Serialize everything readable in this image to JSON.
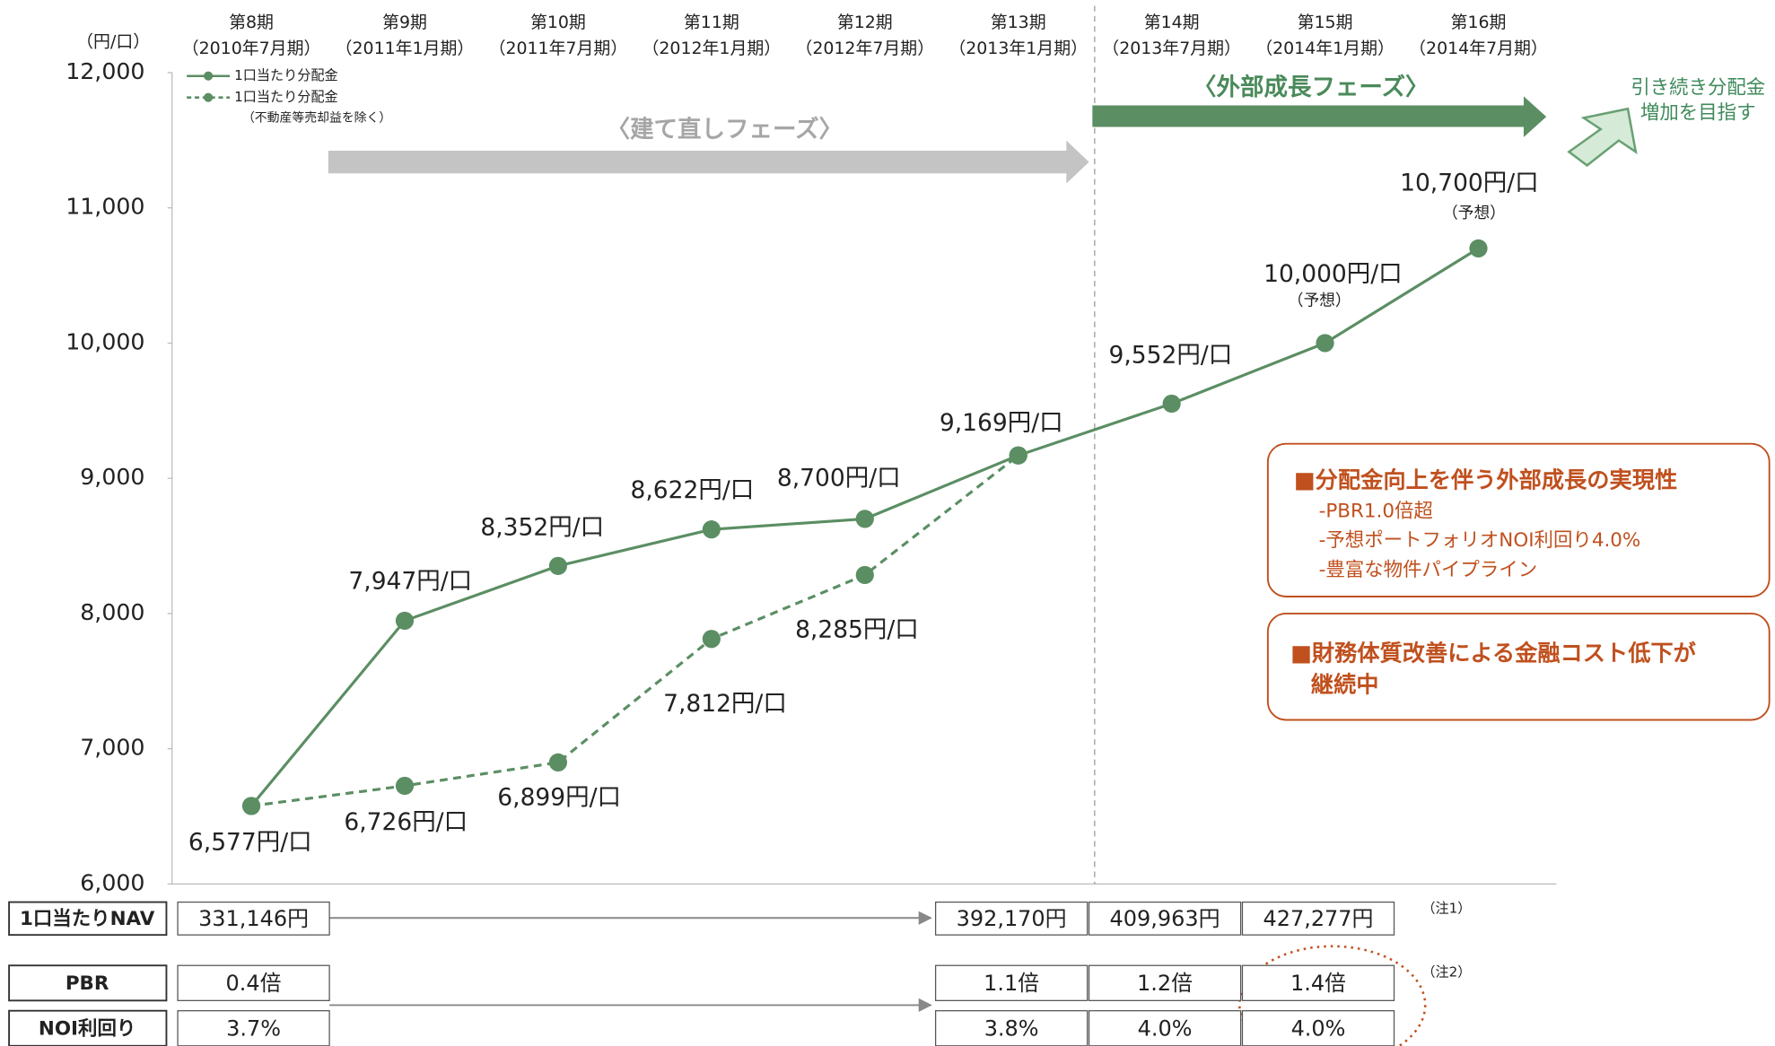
{
  "chart_data": {
    "type": "line",
    "y_unit_label": "（円/口）",
    "categories": [
      "第8期",
      "第9期",
      "第10期",
      "第11期",
      "第12期",
      "第13期",
      "第14期",
      "第15期",
      "第16期"
    ],
    "category_periods": [
      "（2010年7月期）",
      "（2011年1月期）",
      "（2011年7月期）",
      "（2012年1月期）",
      "（2012年7月期）",
      "（2013年1月期）",
      "（2013年7月期）",
      "（2014年1月期）",
      "（2014年7月期）"
    ],
    "series": [
      {
        "name": "1口当たり分配金",
        "color": "#5b8e63",
        "line_style": "solid",
        "values": [
          6577,
          7947,
          8352,
          8622,
          8700,
          9169,
          9552,
          10000,
          10700
        ],
        "value_labels": [
          "6,577円/口",
          "7,947円/口",
          "8,352円/口",
          "8,622円/口",
          "8,700円/口",
          "9,169円/口",
          "9,552円/口",
          "10,000円/口",
          "10,700円/口"
        ],
        "value_notes": [
          null,
          null,
          null,
          null,
          null,
          null,
          null,
          "（予想）",
          "（予想）"
        ]
      },
      {
        "name": "1口当たり分配金",
        "note": "（不動産等売却益を除く）",
        "color": "#5b8e63",
        "line_style": "dashed",
        "values": [
          6577,
          6726,
          6899,
          7812,
          8285,
          9169,
          null,
          null,
          null
        ],
        "value_labels": [
          null,
          "6,726円/口",
          "6,899円/口",
          "7,812円/口",
          "8,285円/口",
          null,
          null,
          null,
          null
        ]
      }
    ],
    "ylim": [
      6000,
      12000
    ],
    "yticks": [
      {
        "value": 6000,
        "label": "6,000"
      },
      {
        "value": 7000,
        "label": "7,000"
      },
      {
        "value": 8000,
        "label": "8,000"
      },
      {
        "value": 9000,
        "label": "9,000"
      },
      {
        "value": 10000,
        "label": "10,000"
      },
      {
        "value": 11000,
        "label": "11,000"
      },
      {
        "value": 12000,
        "label": "12,000"
      }
    ],
    "grid": false,
    "annotations": {
      "rebuild_phase": "〈建て直しフェーズ〉",
      "growth_phase": "〈外部成長フェーズ〉",
      "outlook": [
        "引き続き分配金",
        "増加を目指す"
      ],
      "box1": {
        "title": "■分配金向上を伴う外部成長の実現性",
        "items": [
          "-PBR1.0倍超",
          "-予想ポートフォリオNOI利回り4.0%",
          "-豊富な物件パイプライン"
        ]
      },
      "box2": {
        "lines": [
          "■財務体質改善による金融コスト低下が",
          "継続中"
        ]
      }
    }
  },
  "table": {
    "rows": [
      {
        "label": "1口当たりNAV",
        "cells": [
          "331,146円",
          null,
          null,
          null,
          null,
          "392,170円",
          "409,963円",
          "427,277円",
          null
        ],
        "note": "（注1）"
      },
      {
        "label": "PBR",
        "cells": [
          "0.4倍",
          null,
          null,
          null,
          null,
          "1.1倍",
          "1.2倍",
          "1.4倍",
          null
        ],
        "note": "（注2）"
      },
      {
        "label": "NOI利回り",
        "cells": [
          "3.7%",
          null,
          null,
          null,
          null,
          "3.8%",
          "4.0%",
          "4.0%",
          null
        ]
      }
    ]
  }
}
